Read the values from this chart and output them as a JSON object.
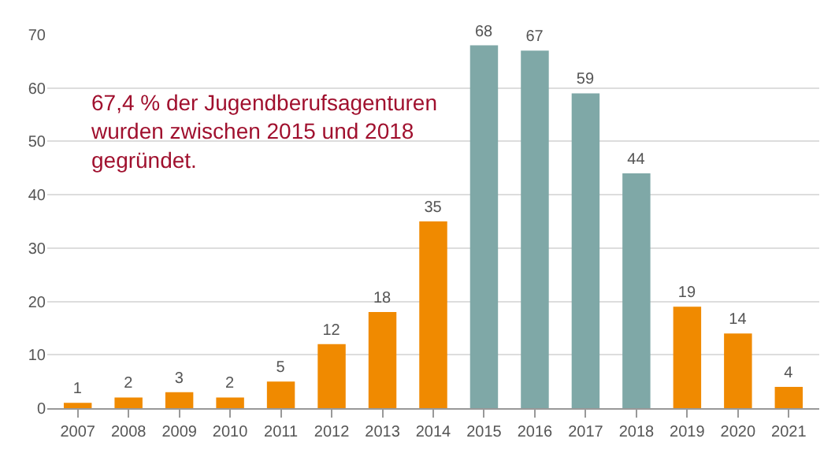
{
  "chart_data": {
    "type": "bar",
    "categories": [
      "2007",
      "2008",
      "2009",
      "2010",
      "2011",
      "2012",
      "2013",
      "2014",
      "2015",
      "2016",
      "2017",
      "2018",
      "2019",
      "2020",
      "2021"
    ],
    "values": [
      1,
      2,
      3,
      2,
      5,
      12,
      18,
      35,
      68,
      67,
      59,
      44,
      19,
      14,
      4
    ],
    "colors": [
      "#f08a00",
      "#f08a00",
      "#f08a00",
      "#f08a00",
      "#f08a00",
      "#f08a00",
      "#f08a00",
      "#f08a00",
      "#7fa8a7",
      "#7fa8a7",
      "#7fa8a7",
      "#7fa8a7",
      "#f08a00",
      "#f08a00",
      "#f08a00"
    ],
    "ylim": [
      0,
      70
    ],
    "yticks": [
      0,
      10,
      20,
      30,
      40,
      50,
      60,
      70
    ],
    "grid": "y",
    "data_labels": true,
    "annotations": [
      "67,4 % der Jugendberufsagenturen\nwurden zwischen 2015 und 2018\ngegründet."
    ]
  }
}
